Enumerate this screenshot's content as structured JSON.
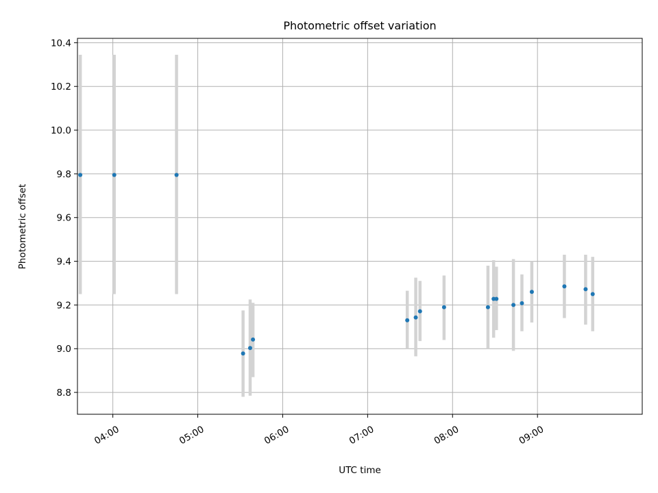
{
  "chart_data": {
    "type": "scatter",
    "title": "Photometric offset variation",
    "xlabel": "UTC time",
    "ylabel": "Photometric offset",
    "x_tick_labels": [
      "04:00",
      "05:00",
      "06:00",
      "07:00",
      "08:00",
      "09:00"
    ],
    "x_ticks": [
      "04:00",
      "05:00",
      "06:00",
      "07:00",
      "08:00",
      "09:00"
    ],
    "y_tick_labels": [
      "8.8",
      "9.0",
      "9.2",
      "9.4",
      "9.6",
      "9.8",
      "10.0",
      "10.2",
      "10.4"
    ],
    "y_ticks": [
      8.8,
      9.0,
      9.2,
      9.4,
      9.6,
      9.8,
      10.0,
      10.2,
      10.4
    ],
    "xlim": [
      "03:35",
      "10:14"
    ],
    "ylim": [
      8.7,
      10.42
    ],
    "grid": true,
    "marker_color": "#1f77b4",
    "errorbar_color": "#d3d3d3",
    "points": [
      {
        "time": "03:37",
        "y": 9.795,
        "err_low": 9.25,
        "err_high": 10.345
      },
      {
        "time": "04:01",
        "y": 9.795,
        "err_low": 9.25,
        "err_high": 10.345
      },
      {
        "time": "04:45",
        "y": 9.795,
        "err_low": 9.25,
        "err_high": 10.345
      },
      {
        "time": "05:32",
        "y": 8.978,
        "err_low": 8.78,
        "err_high": 9.175
      },
      {
        "time": "05:37",
        "y": 9.003,
        "err_low": 8.785,
        "err_high": 9.225
      },
      {
        "time": "05:39",
        "y": 9.042,
        "err_low": 8.87,
        "err_high": 9.21
      },
      {
        "time": "07:28",
        "y": 9.13,
        "err_low": 9.0,
        "err_high": 9.265
      },
      {
        "time": "07:34",
        "y": 9.143,
        "err_low": 8.965,
        "err_high": 9.325
      },
      {
        "time": "07:37",
        "y": 9.171,
        "err_low": 9.035,
        "err_high": 9.31
      },
      {
        "time": "07:54",
        "y": 9.19,
        "err_low": 9.04,
        "err_high": 9.335
      },
      {
        "time": "08:25",
        "y": 9.19,
        "err_low": 9.0,
        "err_high": 9.38
      },
      {
        "time": "08:29",
        "y": 9.228,
        "err_low": 9.05,
        "err_high": 9.405
      },
      {
        "time": "08:31",
        "y": 9.228,
        "err_low": 9.085,
        "err_high": 9.375
      },
      {
        "time": "08:43",
        "y": 9.2,
        "err_low": 8.99,
        "err_high": 9.41
      },
      {
        "time": "08:49",
        "y": 9.208,
        "err_low": 9.08,
        "err_high": 9.34
      },
      {
        "time": "08:56",
        "y": 9.26,
        "err_low": 9.12,
        "err_high": 9.4
      },
      {
        "time": "09:19",
        "y": 9.285,
        "err_low": 9.14,
        "err_high": 9.43
      },
      {
        "time": "09:34",
        "y": 9.272,
        "err_low": 9.11,
        "err_high": 9.43
      },
      {
        "time": "09:39",
        "y": 9.25,
        "err_low": 9.08,
        "err_high": 9.42
      }
    ]
  }
}
